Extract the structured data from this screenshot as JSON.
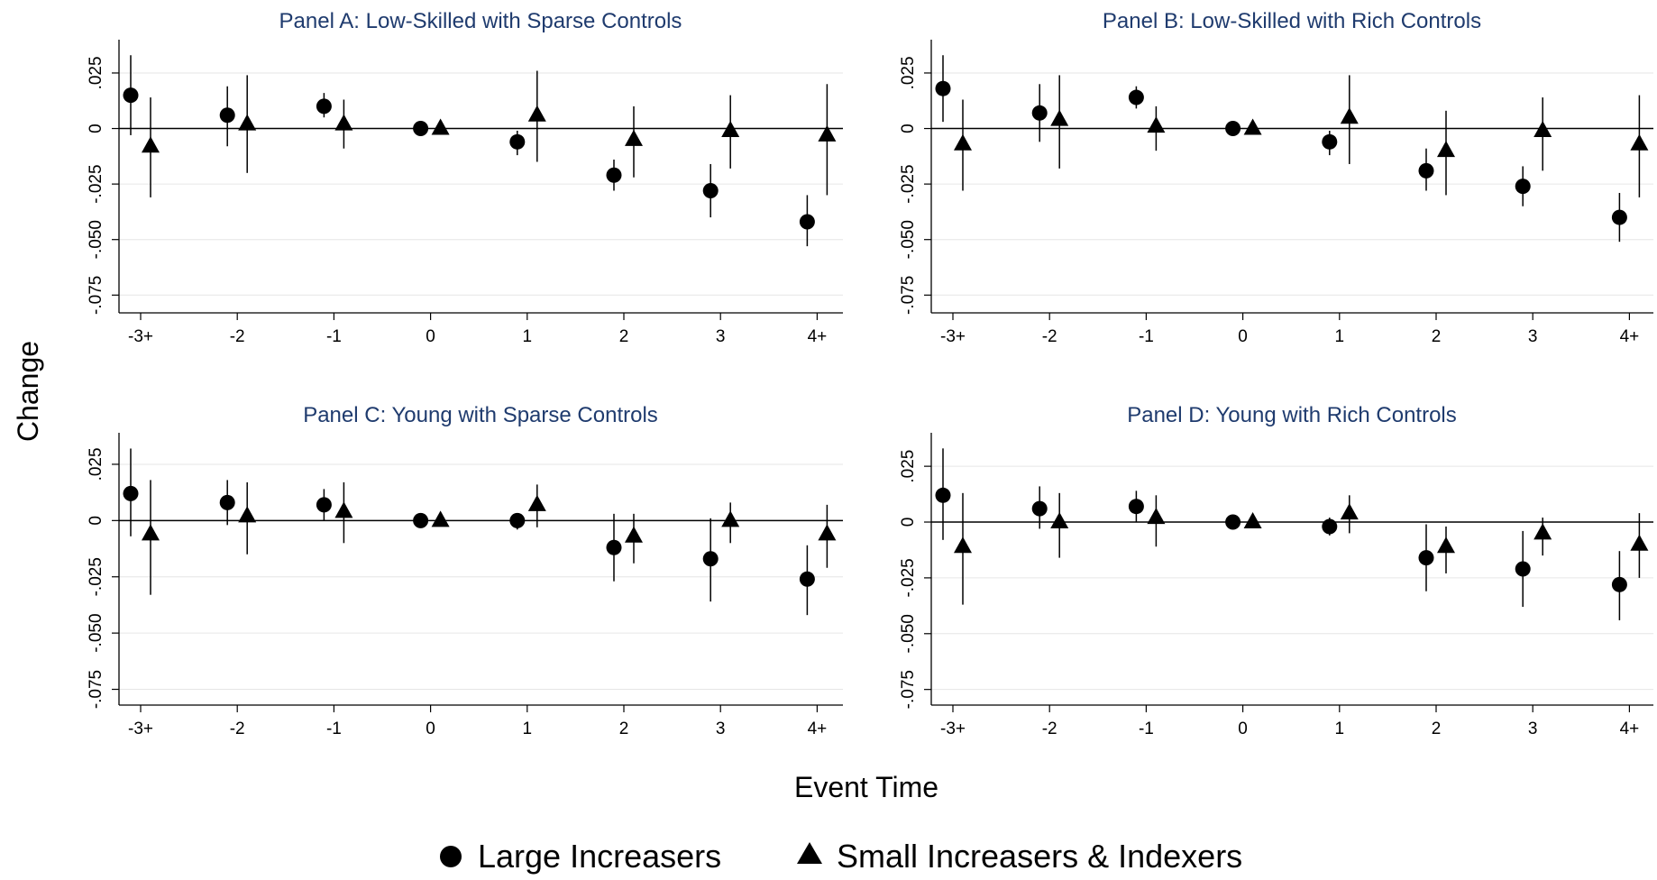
{
  "figure": {
    "ylabel": "Change",
    "xlabel": "Event Time",
    "legend": {
      "placement": "bottom-center",
      "items": [
        {
          "marker": "circle",
          "label": "Large Increasers"
        },
        {
          "marker": "triangle",
          "label": "Small Increasers & Indexers"
        }
      ]
    }
  },
  "chart_data": [
    {
      "type": "scatter",
      "title": "Panel A: Low-Skilled with Sparse Controls",
      "categories": [
        "-3+",
        "-2",
        "-1",
        "0",
        "1",
        "2",
        "3",
        "4+"
      ],
      "y_ticks": [
        ".025",
        "0",
        "-.025",
        "-.050",
        "-.075"
      ],
      "ylim": [
        -0.083,
        0.04
      ],
      "grid": true,
      "series": [
        {
          "name": "Large Increasers",
          "marker": "circle",
          "values": [
            0.015,
            0.006,
            0.01,
            0.0,
            -0.006,
            -0.021,
            -0.028,
            -0.042
          ],
          "ci_low": [
            -0.003,
            -0.008,
            0.005,
            0.0,
            -0.012,
            -0.028,
            -0.04,
            -0.053
          ],
          "ci_high": [
            0.033,
            0.019,
            0.016,
            0.0,
            -0.001,
            -0.014,
            -0.016,
            -0.03
          ]
        },
        {
          "name": "Small Increasers & Indexers",
          "marker": "triangle",
          "values": [
            -0.008,
            0.002,
            0.002,
            0.0,
            0.006,
            -0.005,
            -0.001,
            -0.003
          ],
          "ci_low": [
            -0.031,
            -0.02,
            -0.009,
            0.0,
            -0.015,
            -0.022,
            -0.018,
            -0.03
          ],
          "ci_high": [
            0.014,
            0.024,
            0.013,
            0.0,
            0.026,
            0.01,
            0.015,
            0.02
          ]
        }
      ]
    },
    {
      "type": "scatter",
      "title": "Panel B: Low-Skilled with Rich Controls",
      "categories": [
        "-3+",
        "-2",
        "-1",
        "0",
        "1",
        "2",
        "3",
        "4+"
      ],
      "y_ticks": [
        ".025",
        "0",
        "-.025",
        "-.050",
        "-.075"
      ],
      "ylim": [
        -0.083,
        0.04
      ],
      "grid": true,
      "series": [
        {
          "name": "Large Increasers",
          "marker": "circle",
          "values": [
            0.018,
            0.007,
            0.014,
            0.0,
            -0.006,
            -0.019,
            -0.026,
            -0.04
          ],
          "ci_low": [
            0.003,
            -0.006,
            0.009,
            0.0,
            -0.012,
            -0.028,
            -0.035,
            -0.051
          ],
          "ci_high": [
            0.033,
            0.02,
            0.019,
            0.0,
            -0.001,
            -0.009,
            -0.017,
            -0.029
          ]
        },
        {
          "name": "Small Increasers & Indexers",
          "marker": "triangle",
          "values": [
            -0.007,
            0.004,
            0.001,
            0.0,
            0.005,
            -0.01,
            -0.001,
            -0.007
          ],
          "ci_low": [
            -0.028,
            -0.018,
            -0.01,
            0.0,
            -0.016,
            -0.03,
            -0.019,
            -0.031
          ],
          "ci_high": [
            0.013,
            0.024,
            0.01,
            0.0,
            0.024,
            0.008,
            0.014,
            0.015
          ]
        }
      ]
    },
    {
      "type": "scatter",
      "title": "Panel C: Young with Sparse Controls",
      "categories": [
        "-3+",
        "-2",
        "-1",
        "0",
        "1",
        "2",
        "3",
        "4+"
      ],
      "y_ticks": [
        ".025",
        "0",
        "-.025",
        "-.050",
        "-.075"
      ],
      "ylim": [
        -0.082,
        0.039
      ],
      "grid": true,
      "series": [
        {
          "name": "Large Increasers",
          "marker": "circle",
          "values": [
            0.012,
            0.008,
            0.007,
            0.0,
            0.0,
            -0.012,
            -0.017,
            -0.026
          ],
          "ci_low": [
            -0.007,
            -0.002,
            0.0,
            0.0,
            -0.004,
            -0.027,
            -0.036,
            -0.042
          ],
          "ci_high": [
            0.032,
            0.018,
            0.014,
            0.0,
            0.003,
            0.003,
            0.001,
            -0.011
          ]
        },
        {
          "name": "Small Increasers & Indexers",
          "marker": "triangle",
          "values": [
            -0.006,
            0.002,
            0.004,
            0.0,
            0.007,
            -0.007,
            0.0,
            -0.006
          ],
          "ci_low": [
            -0.033,
            -0.015,
            -0.01,
            0.0,
            -0.003,
            -0.019,
            -0.01,
            -0.021
          ],
          "ci_high": [
            0.018,
            0.017,
            0.017,
            0.0,
            0.016,
            0.003,
            0.008,
            0.007
          ]
        }
      ]
    },
    {
      "type": "scatter",
      "title": "Panel D: Young with Rich Controls",
      "categories": [
        "-3+",
        "-2",
        "-1",
        "0",
        "1",
        "2",
        "3",
        "4+"
      ],
      "y_ticks": [
        ".025",
        "0",
        "-.025",
        "-.050",
        "-.075"
      ],
      "ylim": [
        -0.082,
        0.04
      ],
      "grid": true,
      "series": [
        {
          "name": "Large Increasers",
          "marker": "circle",
          "values": [
            0.012,
            0.006,
            0.007,
            0.0,
            -0.002,
            -0.016,
            -0.021,
            -0.028
          ],
          "ci_low": [
            -0.008,
            -0.003,
            0.0,
            0.0,
            -0.006,
            -0.031,
            -0.038,
            -0.044
          ],
          "ci_high": [
            0.033,
            0.016,
            0.014,
            0.0,
            0.002,
            -0.001,
            -0.004,
            -0.013
          ]
        },
        {
          "name": "Small Increasers & Indexers",
          "marker": "triangle",
          "values": [
            -0.011,
            0.0,
            0.002,
            0.0,
            0.004,
            -0.011,
            -0.005,
            -0.01
          ],
          "ci_low": [
            -0.037,
            -0.016,
            -0.011,
            0.0,
            -0.005,
            -0.023,
            -0.015,
            -0.025
          ],
          "ci_high": [
            0.013,
            0.013,
            0.012,
            0.0,
            0.012,
            -0.002,
            0.002,
            0.004
          ]
        }
      ]
    }
  ]
}
